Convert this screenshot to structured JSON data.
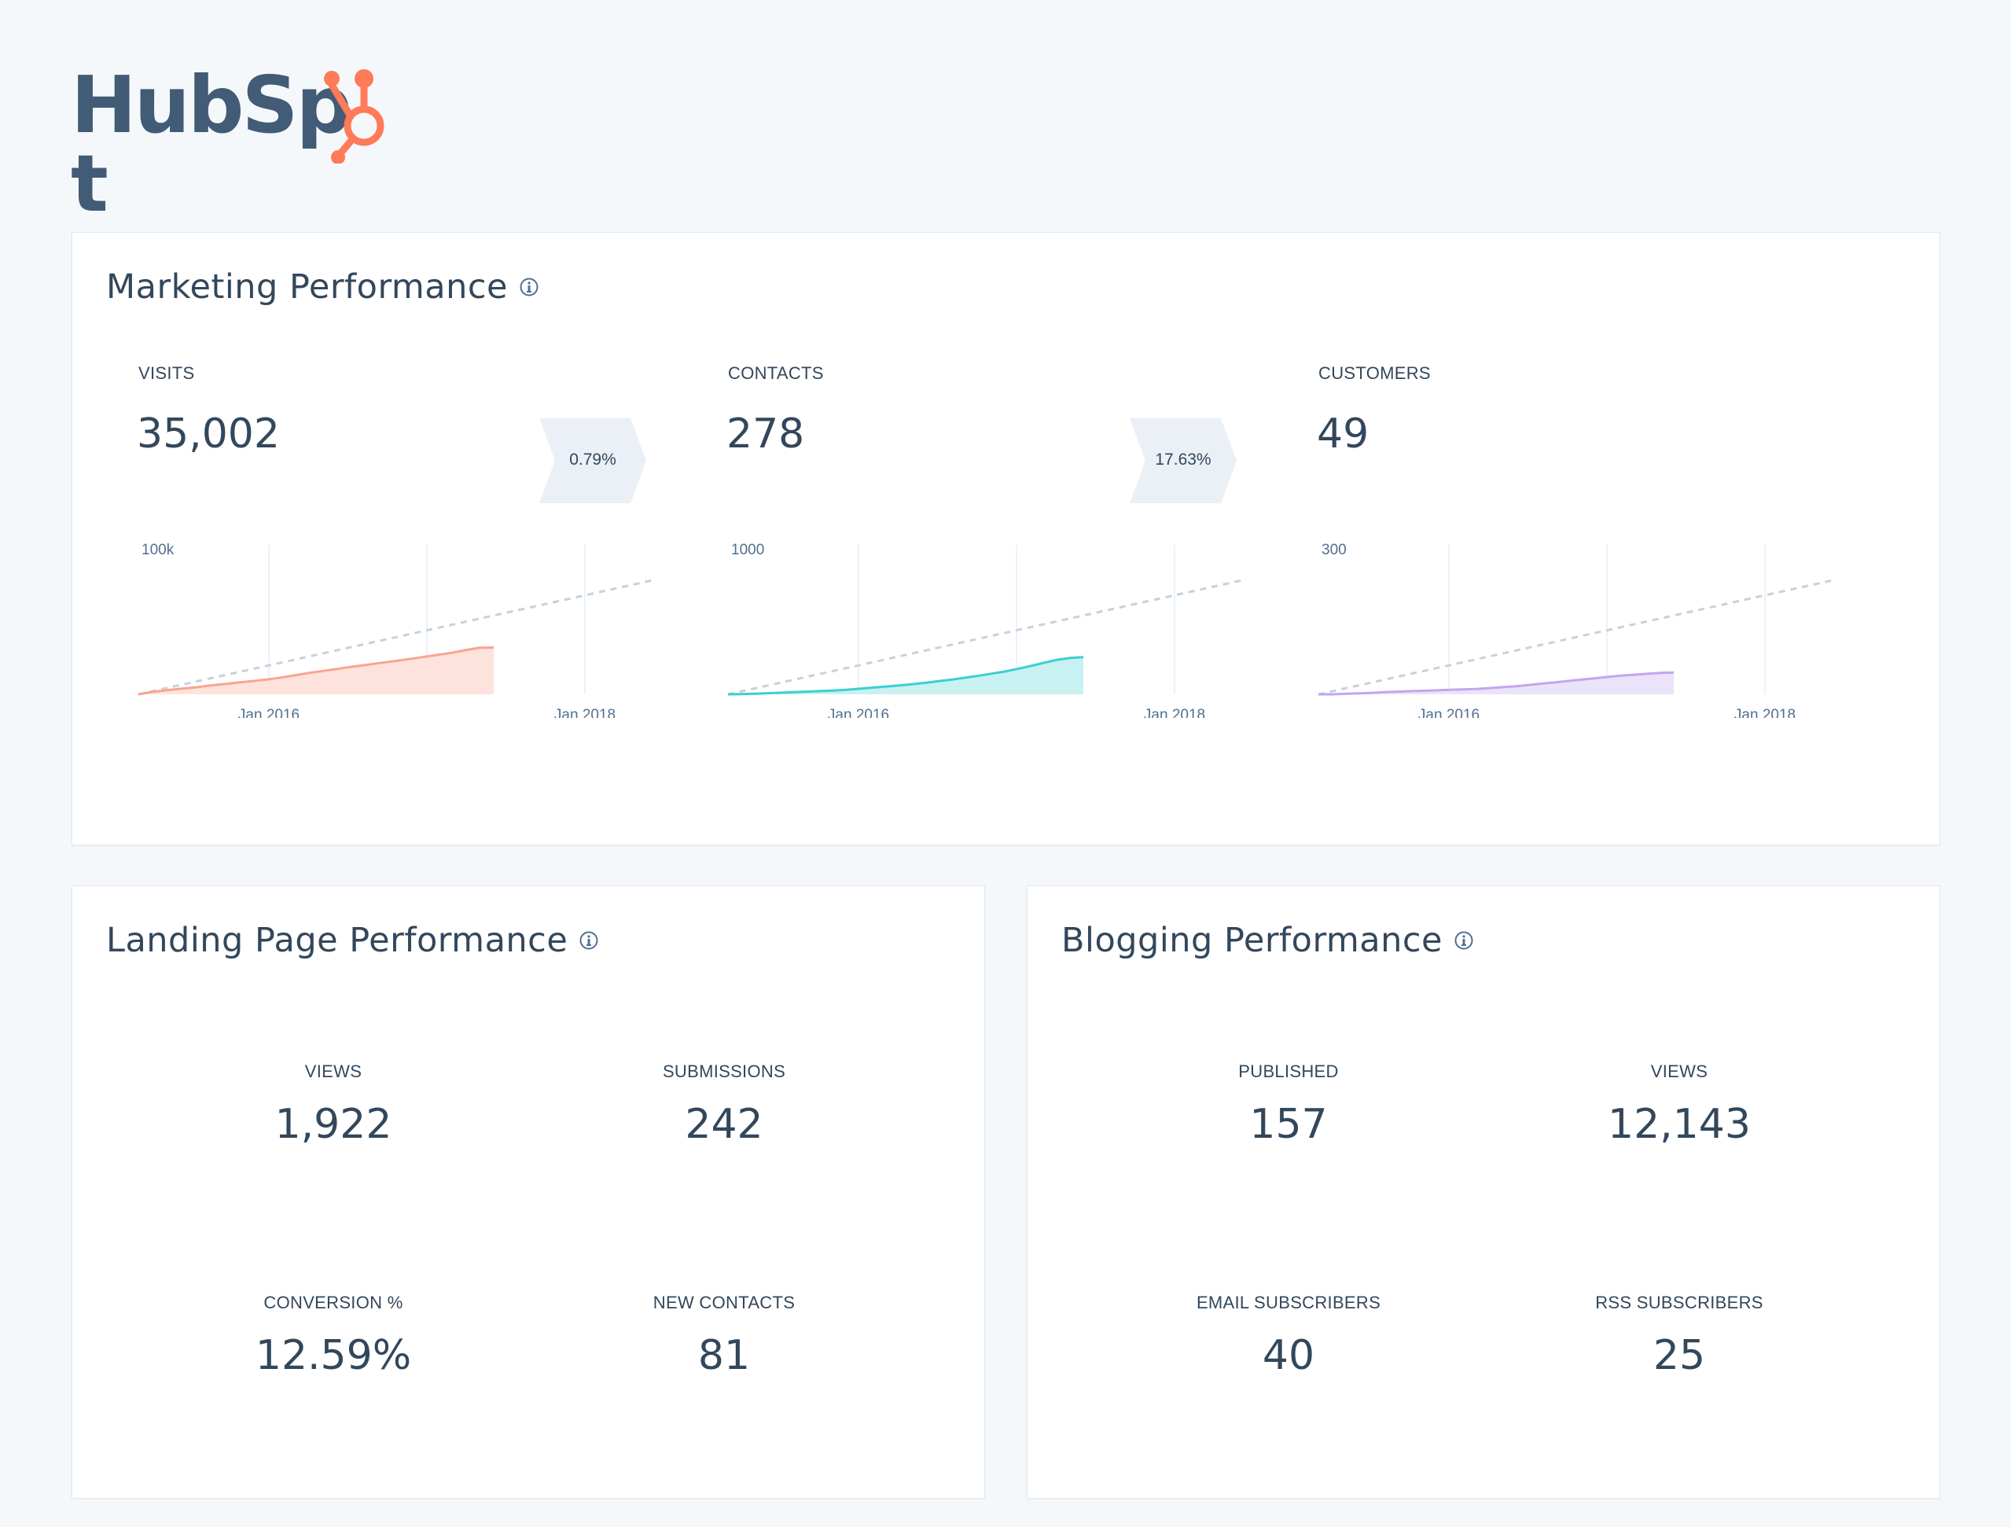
{
  "brand": {
    "logo_text": "HubSpot",
    "logo_text_prefix": "HubSp",
    "logo_text_suffix": "t",
    "accent": "#ff7a59",
    "text_color": "#425b76"
  },
  "marketing": {
    "title": "Marketing Performance",
    "info_icon": "info-icon",
    "metrics": [
      {
        "label": "VISITS",
        "value": "35,002",
        "color": "#f8a48f",
        "fill": "#fde3dc",
        "y_tick": "100k",
        "y_max": 100000,
        "current": 35002
      },
      {
        "label": "CONTACTS",
        "value": "278",
        "color": "#3ccfcf",
        "fill": "#c8f1f1",
        "y_tick": "1000",
        "y_max": 1000,
        "current": 278
      },
      {
        "label": "CUSTOMERS",
        "value": "49",
        "color": "#c2a6ee",
        "fill": "#ebe3f9",
        "y_tick": "300",
        "y_max": 300,
        "current": 49
      }
    ],
    "conversion_rates": [
      "0.79%",
      "17.63%"
    ],
    "x_ticks": [
      "Jan 2016",
      "Jan 2018"
    ]
  },
  "chart_data": [
    {
      "type": "area",
      "title": "",
      "series": [
        {
          "name": "VISITS",
          "values": [
            0,
            1800,
            3100,
            4200,
            5200,
            6500,
            7600,
            8800,
            9900,
            11000,
            12500,
            14200,
            16000,
            17500,
            19000,
            20600,
            22000,
            23400,
            24800,
            26300,
            27800,
            29400,
            31000,
            33000,
            34800,
            35002
          ]
        }
      ],
      "ylim": [
        0,
        100000
      ],
      "xlabel": "",
      "ylabel": ""
    },
    {
      "type": "area",
      "title": "",
      "series": [
        {
          "name": "CONTACTS",
          "values": [
            0,
            2,
            4,
            8,
            12,
            16,
            20,
            24,
            28,
            34,
            42,
            50,
            58,
            66,
            76,
            86,
            98,
            110,
            124,
            138,
            154,
            170,
            190,
            212,
            236,
            258,
            272,
            278
          ]
        }
      ],
      "ylim": [
        0,
        1000
      ],
      "xlabel": "",
      "ylabel": ""
    },
    {
      "type": "area",
      "title": "",
      "series": [
        {
          "name": "CUSTOMERS",
          "values": [
            0,
            0,
            1,
            2,
            3,
            5,
            6,
            7,
            8,
            9,
            10,
            11,
            12,
            14,
            16,
            18,
            21,
            24,
            27,
            30,
            33,
            36,
            39,
            42,
            44,
            46,
            48,
            49
          ]
        }
      ],
      "ylim": [
        0,
        300
      ],
      "xlabel": "",
      "ylabel": ""
    }
  ],
  "landing": {
    "title": "Landing Page Performance",
    "info_icon": "info-icon",
    "stats": [
      {
        "label": "VIEWS",
        "value": "1,922"
      },
      {
        "label": "SUBMISSIONS",
        "value": "242"
      },
      {
        "label": "CONVERSION %",
        "value": "12.59%"
      },
      {
        "label": "NEW CONTACTS",
        "value": "81"
      }
    ]
  },
  "blogging": {
    "title": "Blogging Performance",
    "info_icon": "info-icon",
    "stats": [
      {
        "label": "PUBLISHED",
        "value": "157"
      },
      {
        "label": "VIEWS",
        "value": "12,143"
      },
      {
        "label": "EMAIL SUBSCRIBERS",
        "value": "40"
      },
      {
        "label": "RSS SUBSCRIBERS",
        "value": "25"
      }
    ]
  }
}
